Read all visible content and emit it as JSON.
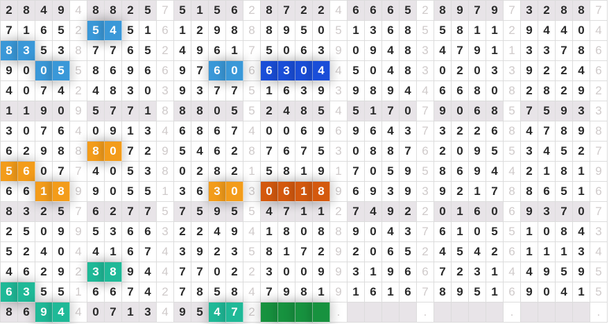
{
  "colors": {
    "blue": "#3a98d8",
    "dark_blue": "#1a4ed8",
    "orange": "#f39c1a",
    "dark_orange": "#d4590e",
    "teal": "#1fb997",
    "green": "#17923f",
    "shaded_row": "#e8e4e8"
  },
  "shaded_rows": [
    0,
    5,
    10,
    15
  ],
  "rows": [
    {
      "groups": [
        "2849",
        "8825",
        "5156",
        "8722",
        "6665",
        "8979",
        "3288"
      ],
      "seps": [
        "4",
        "7",
        "2",
        "4",
        "2",
        "7",
        "7"
      ]
    },
    {
      "groups": [
        "7165",
        "5451",
        "1298",
        "8950",
        "1368",
        "5811",
        "9440"
      ],
      "seps": [
        "2",
        "6",
        "8",
        "5",
        "5",
        "2",
        "4"
      ]
    },
    {
      "groups": [
        "8353",
        "7765",
        "4961",
        "5063",
        "0948",
        "4791",
        "3378"
      ],
      "seps": [
        "8",
        "2",
        "7",
        "9",
        "3",
        "1",
        "6"
      ]
    },
    {
      "groups": [
        "9005",
        "8696",
        "9760",
        "6304",
        "5048",
        "0203",
        "9224"
      ],
      "seps": [
        "5",
        "6",
        "6",
        "4",
        "3",
        "3",
        "6"
      ]
    },
    {
      "groups": [
        "4074",
        "4830",
        "9377",
        "1639",
        "9894",
        "6680",
        "2829"
      ],
      "seps": [
        "2",
        "3",
        "5",
        "3",
        "4",
        "8",
        "2"
      ]
    },
    {
      "groups": [
        "1190",
        "5771",
        "8805",
        "2485",
        "5170",
        "9068",
        "7593"
      ],
      "seps": [
        "9",
        "8",
        "5",
        "4",
        "7",
        "5",
        "3"
      ]
    },
    {
      "groups": [
        "3076",
        "0913",
        "6867",
        "0069",
        "9643",
        "3226",
        "4789"
      ],
      "seps": [
        "4",
        "4",
        "4",
        "6",
        "7",
        "8",
        "8"
      ]
    },
    {
      "groups": [
        "6298",
        "8072",
        "5462",
        "7675",
        "0887",
        "2095",
        "3452"
      ],
      "seps": [
        "8",
        "9",
        "8",
        "3",
        "6",
        "5",
        "7"
      ]
    },
    {
      "groups": [
        "5607",
        "4053",
        "0282",
        "5819",
        "7059",
        "8694",
        "2181"
      ],
      "seps": [
        "7",
        "8",
        "1",
        "1",
        "5",
        "4",
        "9"
      ]
    },
    {
      "groups": [
        "6618",
        "9055",
        "3630",
        "0618",
        "6939",
        "9217",
        "8651"
      ],
      "seps": [
        "9",
        "1",
        "3",
        "9",
        "3",
        "8",
        "6"
      ]
    },
    {
      "groups": [
        "8325",
        "6277",
        "7595",
        "4711",
        "7492",
        "0160",
        "9370"
      ],
      "seps": [
        "7",
        "5",
        "5",
        "2",
        "2",
        "6",
        "7"
      ]
    },
    {
      "groups": [
        "2509",
        "5366",
        "2249",
        "1808",
        "9043",
        "6105",
        "1084"
      ],
      "seps": [
        "9",
        "3",
        "4",
        "8",
        "7",
        "5",
        "3"
      ]
    },
    {
      "groups": [
        "5240",
        "4167",
        "3923",
        "8172",
        "2065",
        "4542",
        "1113"
      ],
      "seps": [
        "4",
        "4",
        "5",
        "9",
        "2",
        "6",
        "4"
      ]
    },
    {
      "groups": [
        "4629",
        "3894",
        "7702",
        "3009",
        "3196",
        "7231",
        "4959"
      ],
      "seps": [
        "2",
        "4",
        "2",
        "9",
        "6",
        "4",
        "5"
      ]
    },
    {
      "groups": [
        "6355",
        "6674",
        "7858",
        "7981",
        "1616",
        "8951",
        "9041"
      ],
      "seps": [
        "1",
        "2",
        "4",
        "9",
        "7",
        "6",
        "5"
      ]
    },
    {
      "groups": [
        "8694",
        "0713",
        "9547",
        "    ",
        "    ",
        "    ",
        "    "
      ],
      "seps": [
        "4",
        "4",
        "2",
        ".",
        ".",
        ".",
        "."
      ]
    }
  ],
  "highlights": [
    {
      "row": 1,
      "group": 1,
      "start": 0,
      "len": 2,
      "color": "blue"
    },
    {
      "row": 2,
      "group": 0,
      "start": 0,
      "len": 2,
      "color": "blue"
    },
    {
      "row": 3,
      "group": 0,
      "start": 2,
      "len": 2,
      "color": "blue"
    },
    {
      "row": 3,
      "group": 2,
      "start": 2,
      "len": 2,
      "color": "blue"
    },
    {
      "row": 3,
      "group": 3,
      "start": 0,
      "len": 4,
      "color": "dark_blue"
    },
    {
      "row": 7,
      "group": 1,
      "start": 0,
      "len": 2,
      "color": "orange"
    },
    {
      "row": 8,
      "group": 0,
      "start": 0,
      "len": 2,
      "color": "orange"
    },
    {
      "row": 9,
      "group": 0,
      "start": 2,
      "len": 2,
      "color": "orange"
    },
    {
      "row": 9,
      "group": 2,
      "start": 2,
      "len": 2,
      "color": "orange"
    },
    {
      "row": 9,
      "group": 3,
      "start": 0,
      "len": 4,
      "color": "dark_orange"
    },
    {
      "row": 13,
      "group": 1,
      "start": 0,
      "len": 2,
      "color": "teal"
    },
    {
      "row": 14,
      "group": 0,
      "start": 0,
      "len": 2,
      "color": "teal"
    },
    {
      "row": 15,
      "group": 0,
      "start": 2,
      "len": 2,
      "color": "teal"
    },
    {
      "row": 15,
      "group": 2,
      "start": 2,
      "len": 2,
      "color": "teal"
    },
    {
      "row": 15,
      "group": 3,
      "start": 0,
      "len": 4,
      "color": "green"
    }
  ]
}
